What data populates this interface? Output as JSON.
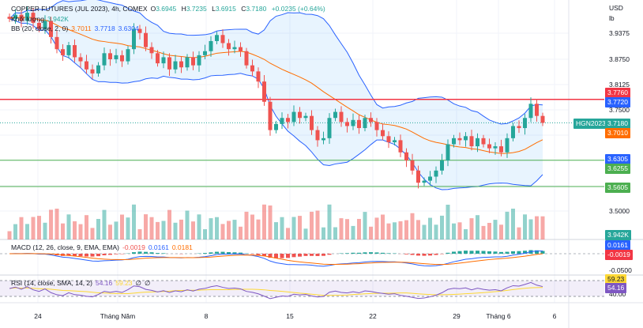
{
  "header": {
    "symbol": "COPPER FUTURES (JUL 2023), 4h, COMEX",
    "o_label": "O",
    "open": "3.6945",
    "h_label": "H",
    "high": "3.7235",
    "l_label": "L",
    "low": "3.6915",
    "c_label": "C",
    "close": "3.7180",
    "change": "+0.0235 (+0.64%)"
  },
  "volume_legend": {
    "label": "Khối lượng",
    "value": "3.942K"
  },
  "bb_legend": {
    "label": "BB (20, close, 2, 0)",
    "basis": "3.7011",
    "upper": "3.7718",
    "lower": "3.6304"
  },
  "macd_legend": {
    "label": "MACD (12, 26, close, 9, EMA, EMA)",
    "hist": "-0.0019",
    "macd": "0.0161",
    "signal": "0.0181"
  },
  "rsi_legend": {
    "label": "RSI (14, close, SMA, 14, 2)",
    "rsi": "54.16",
    "ma": "59.23",
    "extra1": "∅",
    "extra2": "∅"
  },
  "price_axis": {
    "currency": "USD",
    "unit": "lb",
    "ticks": [
      "3.9375",
      "3.8750",
      "3.8125",
      "3.7500",
      "3.5000"
    ],
    "macd_tick": "-0.0500",
    "rsi_tick": "40.00"
  },
  "tags": {
    "red_line": "3.7760",
    "bb_upper": "3.7720",
    "symbol": "HGN2023",
    "last": "3.7180",
    "bb_basis": "3.7010",
    "bb_lower": "3.6305",
    "green_line1": "3.6255",
    "green_line2": "3.5605",
    "volume": "3.942K",
    "macd": "0.0161",
    "macd_hist": "-0.0019",
    "rsi_ma": "59.23",
    "rsi": "54.16"
  },
  "time_axis": [
    "24",
    "Tháng Năm",
    "8",
    "15",
    "22",
    "29",
    "Tháng 6",
    "6"
  ],
  "colors": {
    "up": "#26a69a",
    "down": "#ef5350",
    "bb_band": "#2962ff",
    "bb_basis": "#ff6d00",
    "red_line": "#f23645",
    "green_line": "#4caf50",
    "rsi": "#7e57c2",
    "rsi_ma": "#fdd835"
  },
  "chart_data": {
    "type": "candlestick",
    "price_range": [
      3.47,
      4.0
    ],
    "hlines": [
      3.776,
      3.6255,
      3.5605
    ],
    "close": [
      3.975,
      3.985,
      3.97,
      3.99,
      3.965,
      3.95,
      3.97,
      3.93,
      3.9,
      3.885,
      3.91,
      3.88,
      3.87,
      3.85,
      3.84,
      3.86,
      3.89,
      3.875,
      3.885,
      3.87,
      3.9,
      3.95,
      3.94,
      3.905,
      3.89,
      3.865,
      3.88,
      3.85,
      3.87,
      3.855,
      3.88,
      3.86,
      3.885,
      3.895,
      3.92,
      3.935,
      3.915,
      3.9,
      3.905,
      3.895,
      3.86,
      3.845,
      3.82,
      3.77,
      3.7,
      3.715,
      3.73,
      3.72,
      3.745,
      3.73,
      3.735,
      3.7,
      3.675,
      3.68,
      3.73,
      3.745,
      3.72,
      3.71,
      3.725,
      3.705,
      3.73,
      3.72,
      3.7,
      3.685,
      3.67,
      3.675,
      3.645,
      3.625,
      3.6,
      3.57,
      3.575,
      3.585,
      3.6,
      3.625,
      3.665,
      3.68,
      3.675,
      3.685,
      3.66,
      3.68,
      3.665,
      3.655,
      3.66,
      3.645,
      3.68,
      3.71,
      3.705,
      3.73,
      3.765,
      3.735,
      3.718
    ]
  }
}
